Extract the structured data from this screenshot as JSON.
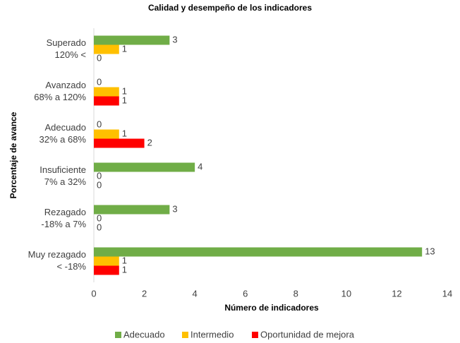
{
  "chart_data": {
    "type": "barh",
    "title": "Calidad y desempeño de los indicadores",
    "x_label": "Número de indicadores",
    "y_label": "Porcentaje de avance",
    "categories": [
      [
        "Superado",
        "120% <"
      ],
      [
        "Avanzado",
        "68% a 120%"
      ],
      [
        "Adecuado",
        "32% a 68%"
      ],
      [
        "Insuficiente",
        "7% a 32%"
      ],
      [
        "Rezagado",
        "-18% a 7%"
      ],
      [
        "Muy rezagado",
        "< -18%"
      ]
    ],
    "series": [
      {
        "name": "Adecuado",
        "color": "#70ad47",
        "values": [
          3,
          0,
          0,
          4,
          3,
          13
        ]
      },
      {
        "name": "Intermedio",
        "color": "#ffc000",
        "values": [
          1,
          1,
          1,
          0,
          0,
          1
        ]
      },
      {
        "name": "Oportunidad de mejora",
        "color": "#ff0000",
        "values": [
          0,
          1,
          2,
          0,
          0,
          1
        ]
      }
    ],
    "xlim": [
      0,
      14
    ],
    "xticks": [
      0,
      2,
      4,
      6,
      8,
      10,
      12,
      14
    ],
    "grid": false,
    "legend": "bottom"
  }
}
